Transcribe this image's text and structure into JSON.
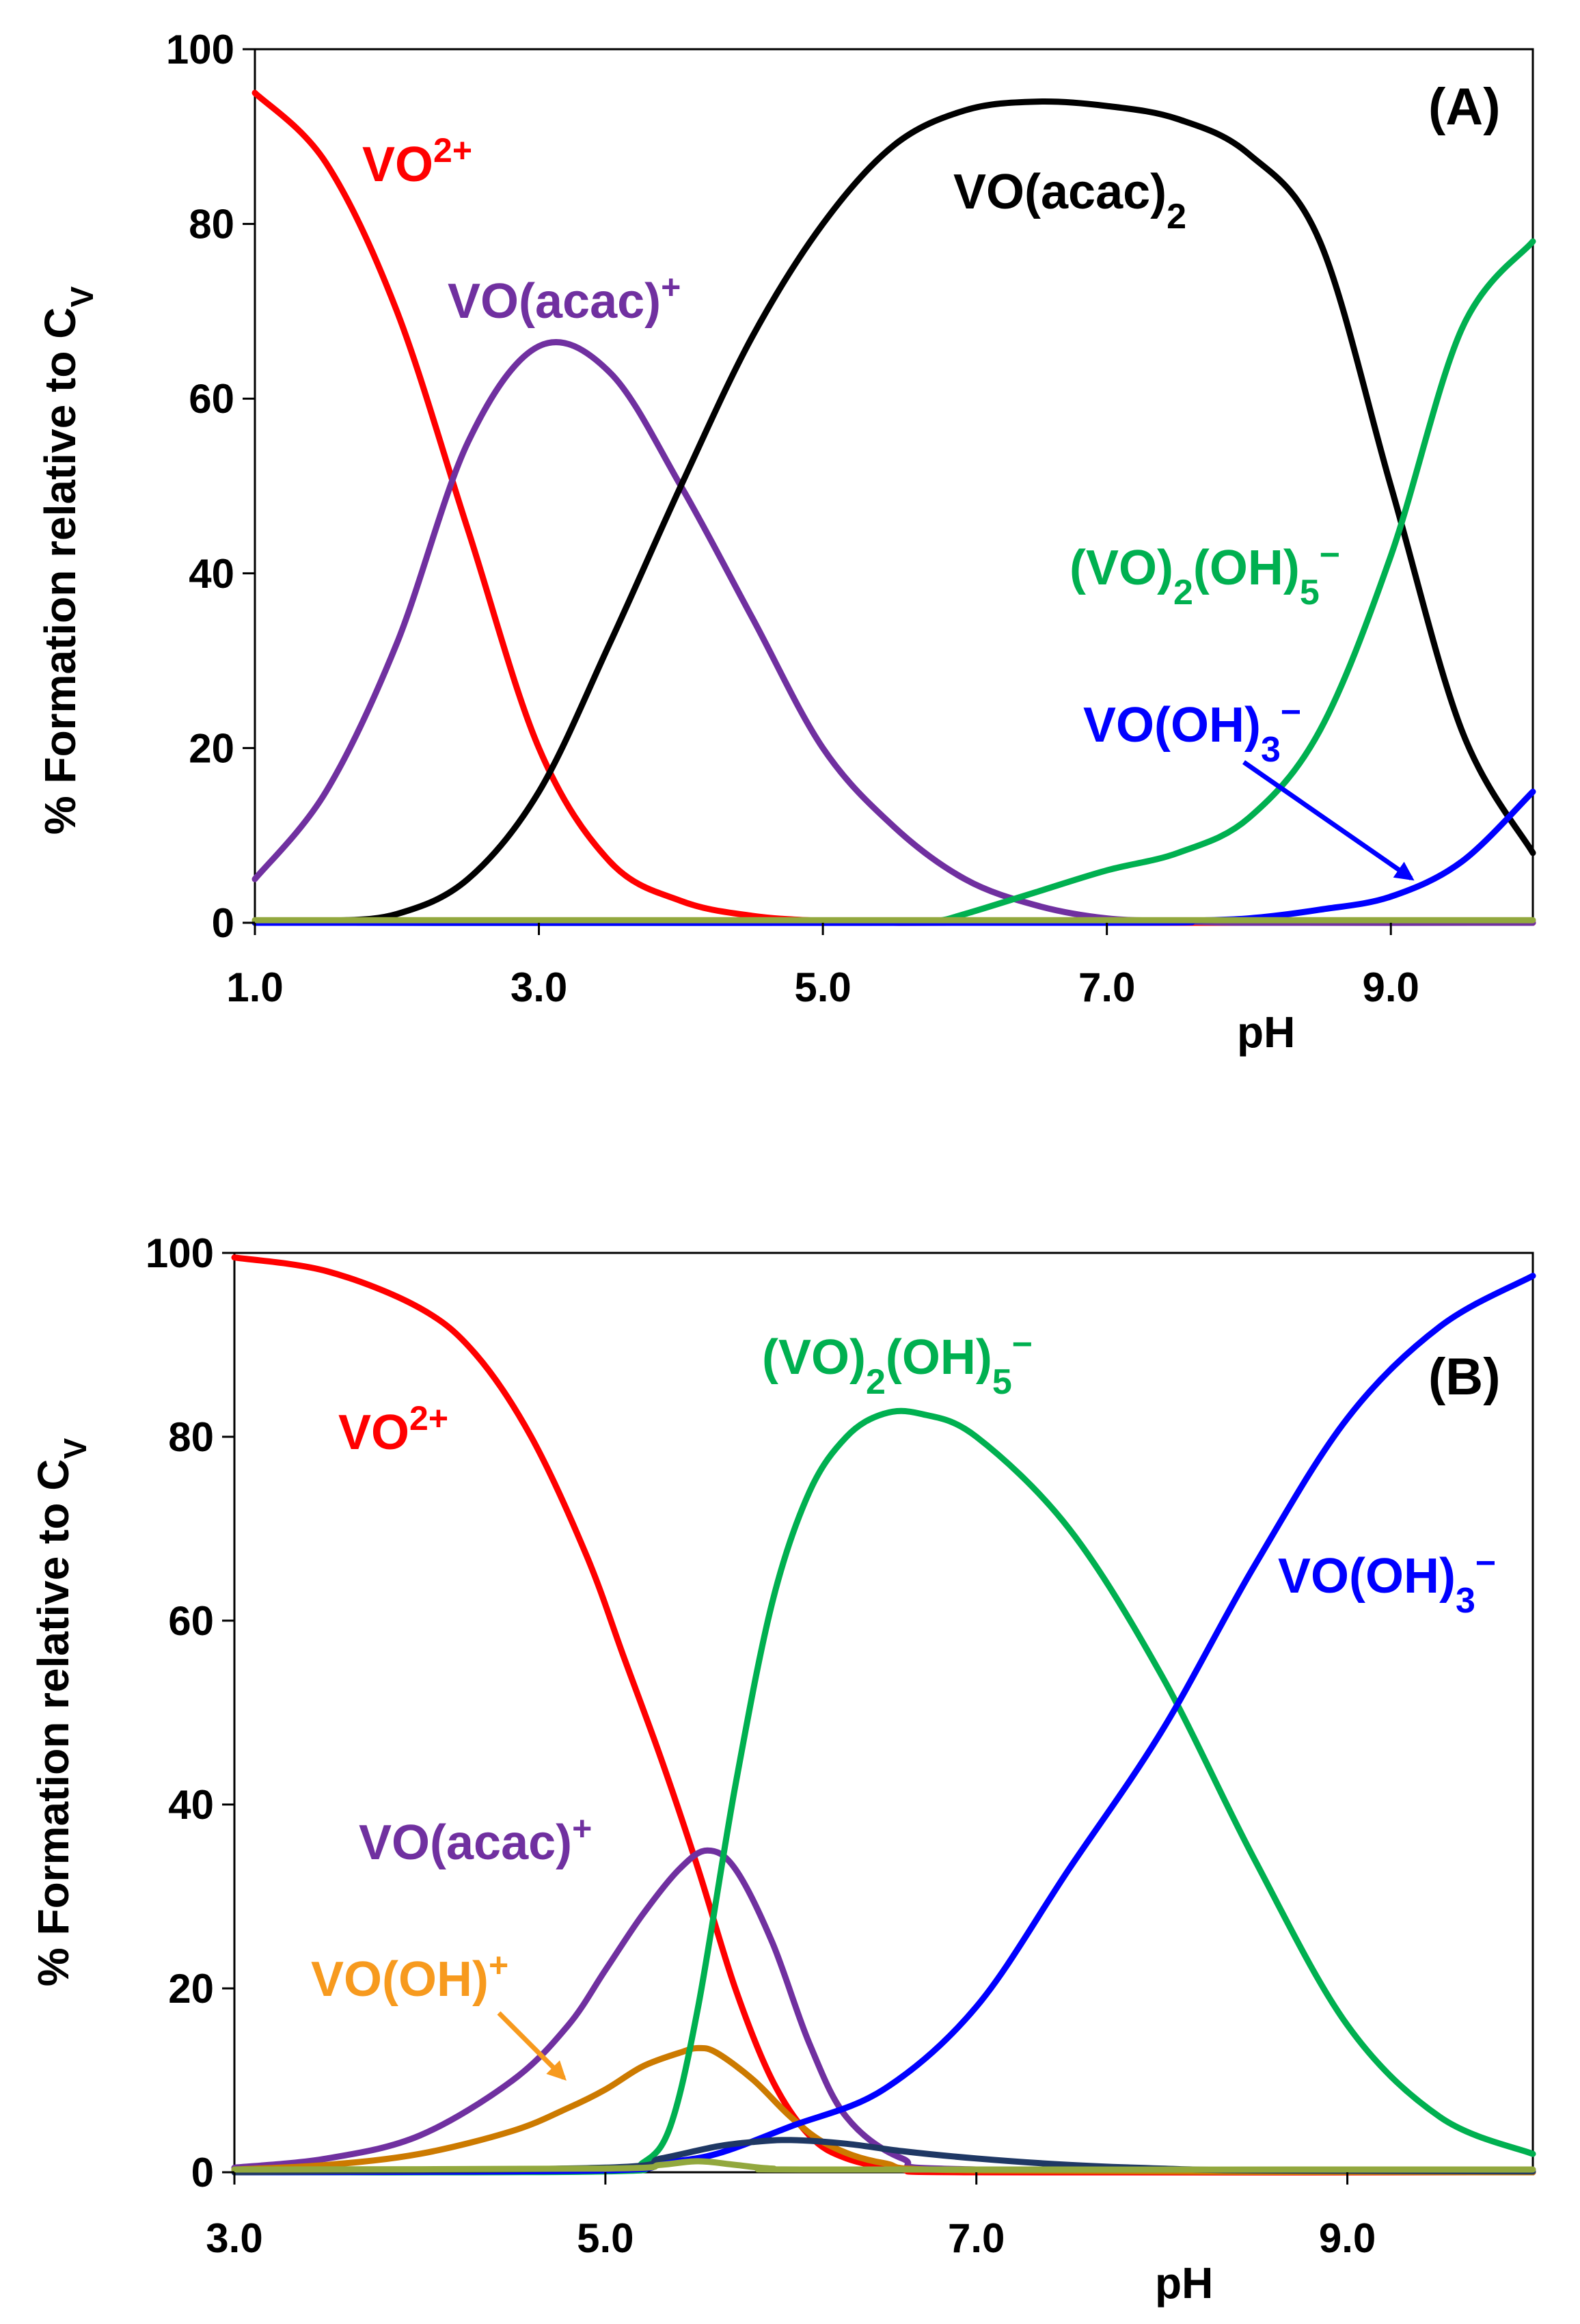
{
  "chart_data": [
    {
      "type": "line",
      "panel_label": "(A)",
      "xlabel": "pH",
      "ylabel_main": "% Formation relative to C",
      "ylabel_sub": "V",
      "xlim": [
        1.0,
        10.0
      ],
      "ylim": [
        0,
        100
      ],
      "x_ticks": [
        "1.0",
        "3.0",
        "5.0",
        "7.0",
        "9.0"
      ],
      "x_tick_values": [
        1.0,
        3.0,
        5.0,
        7.0,
        9.0
      ],
      "y_ticks": [
        "0",
        "20",
        "40",
        "60",
        "80",
        "100"
      ],
      "y_tick_values": [
        0,
        20,
        40,
        60,
        80,
        100
      ],
      "series": [
        {
          "name": "VO2+",
          "color": "#ff0000",
          "x": [
            1.0,
            1.5,
            2.0,
            2.5,
            3.0,
            3.5,
            4.0,
            4.5,
            5.0,
            5.5,
            6.0,
            10.0
          ],
          "y": [
            95,
            87,
            70,
            45,
            20,
            7,
            2.5,
            0.8,
            0.2,
            0,
            0,
            0
          ]
        },
        {
          "name": "VO(acac)+",
          "color": "#7030a0",
          "x": [
            1.0,
            1.5,
            2.0,
            2.5,
            3.0,
            3.5,
            4.0,
            4.5,
            5.0,
            5.5,
            6.0,
            6.5,
            7.0,
            7.5,
            8.0,
            10.0
          ],
          "y": [
            5,
            15,
            32,
            55,
            66,
            63,
            50,
            35,
            20,
            11,
            5,
            2,
            0.5,
            0.2,
            0,
            0
          ]
        },
        {
          "name": "VO(acac)2",
          "color": "#000000",
          "x": [
            1.0,
            1.5,
            2.0,
            2.5,
            3.0,
            3.5,
            4.0,
            4.5,
            5.0,
            5.5,
            6.0,
            6.5,
            7.0,
            7.5,
            8.0,
            8.5,
            9.0,
            9.5,
            10.0
          ],
          "y": [
            0,
            0.2,
            1,
            5,
            15,
            32,
            50,
            67,
            80,
            89,
            93,
            94,
            93.5,
            92,
            88,
            78,
            50,
            22,
            8
          ]
        },
        {
          "name": "(VO)2(OH)5−",
          "color": "#00b050",
          "x": [
            1.0,
            5.5,
            5.8,
            6.0,
            6.5,
            7.0,
            7.5,
            8.0,
            8.5,
            9.0,
            9.5,
            10.0
          ],
          "y": [
            0,
            0,
            0.2,
            1,
            3.5,
            6,
            8,
            12,
            22,
            42,
            68,
            78
          ]
        },
        {
          "name": "VO(OH)3−",
          "color": "#0000ff",
          "x": [
            1.0,
            7.0,
            7.5,
            8.0,
            8.5,
            9.0,
            9.5,
            10.0
          ],
          "y": [
            0,
            0,
            0.2,
            0.5,
            1.5,
            3,
            7,
            15
          ]
        },
        {
          "name": "baseline",
          "color": "#92a83e",
          "x": [
            1.0,
            10.0
          ],
          "y": [
            0.3,
            0.3
          ]
        }
      ],
      "annotations": [
        {
          "text": "VO",
          "sup": "2+",
          "color": "#ff0000"
        },
        {
          "text": "VO(acac)",
          "sup": "+",
          "color": "#7030a0"
        },
        {
          "text": "VO(acac)",
          "sub": "2",
          "color": "#000000"
        },
        {
          "text": "(VO)",
          "sub": "2",
          "text2": "(OH)",
          "sub2": "5",
          "tail": "−",
          "color": "#00b050"
        },
        {
          "text": "VO(OH)",
          "sub": "3",
          "tail": "−",
          "color": "#0000ff"
        }
      ]
    },
    {
      "type": "line",
      "panel_label": "(B)",
      "xlabel": "pH",
      "ylabel_main": "% Formation relative to C",
      "ylabel_sub": "V",
      "xlim": [
        3.0,
        10.0
      ],
      "ylim": [
        0,
        100
      ],
      "x_ticks": [
        "3.0",
        "5.0",
        "7.0",
        "9.0"
      ],
      "x_tick_values": [
        3.0,
        5.0,
        7.0,
        9.0
      ],
      "y_ticks": [
        "0",
        "20",
        "40",
        "60",
        "80",
        "100"
      ],
      "y_tick_values": [
        0,
        20,
        40,
        60,
        80,
        100
      ],
      "series": [
        {
          "name": "VO2+",
          "color": "#ff0000",
          "x": [
            3.0,
            3.5,
            4.0,
            4.3,
            4.6,
            4.9,
            5.1,
            5.3,
            5.5,
            5.7,
            5.9,
            6.1,
            6.3,
            6.6,
            7.0,
            10.0
          ],
          "y": [
            99.5,
            98,
            94,
            89,
            80,
            67,
            56,
            45,
            33,
            20,
            10,
            4,
            1.5,
            0.3,
            0,
            0
          ]
        },
        {
          "name": "VO(acac)+",
          "color": "#7030a0",
          "x": [
            3.0,
            3.5,
            4.0,
            4.5,
            4.8,
            5.0,
            5.2,
            5.4,
            5.55,
            5.7,
            5.9,
            6.1,
            6.3,
            6.6,
            7.0,
            10.0
          ],
          "y": [
            0.5,
            1.5,
            4,
            10,
            16,
            22,
            28,
            33,
            35,
            33,
            25,
            14,
            6,
            1.5,
            0.3,
            0
          ]
        },
        {
          "name": "VO(OH)+",
          "color": "#cc7a00",
          "x": [
            3.0,
            3.5,
            4.0,
            4.5,
            4.8,
            5.0,
            5.2,
            5.4,
            5.5,
            5.6,
            5.8,
            6.0,
            6.2,
            6.5,
            7.0,
            10.0
          ],
          "y": [
            0.3,
            0.8,
            2,
            4.5,
            7,
            9,
            11.5,
            13,
            13.5,
            13,
            10,
            6,
            3,
            1,
            0.2,
            0
          ]
        },
        {
          "name": "(VO)2(OH)5−",
          "color": "#00b050",
          "x": [
            3.0,
            5.0,
            5.2,
            5.35,
            5.5,
            5.7,
            5.9,
            6.1,
            6.3,
            6.5,
            6.7,
            7.0,
            7.5,
            8.0,
            8.5,
            9.0,
            9.5,
            10.0
          ],
          "y": [
            0,
            0.1,
            1,
            5,
            18,
            42,
            62,
            74,
            80,
            82.5,
            82.5,
            80,
            70,
            54,
            34,
            16,
            6,
            2
          ]
        },
        {
          "name": "VO(OH)3−",
          "color": "#0000ff",
          "x": [
            3.0,
            5.0,
            5.3,
            5.6,
            6.0,
            6.5,
            7.0,
            7.5,
            8.0,
            8.5,
            9.0,
            9.5,
            10.0
          ],
          "y": [
            0,
            0.2,
            1,
            2,
            5,
            9,
            18,
            33,
            48,
            66,
            82,
            92,
            97.5
          ]
        },
        {
          "name": "dark-blue",
          "color": "#1f3864",
          "x": [
            3.0,
            5.0,
            5.3,
            5.6,
            5.8,
            6.0,
            6.3,
            6.6,
            7.0,
            7.5,
            8.0,
            8.5,
            10.0
          ],
          "y": [
            0,
            0.5,
            1.5,
            2.8,
            3.3,
            3.5,
            3.1,
            2.3,
            1.5,
            0.8,
            0.4,
            0.2,
            0.1
          ]
        },
        {
          "name": "olive",
          "color": "#92a83e",
          "x": [
            3.0,
            5.0,
            5.3,
            5.5,
            5.7,
            5.9,
            6.2,
            10.0
          ],
          "y": [
            0.3,
            0.4,
            0.8,
            1.2,
            0.8,
            0.4,
            0.3,
            0.3
          ]
        }
      ],
      "annotations": [
        {
          "text": "VO",
          "sup": "2+",
          "color": "#ff0000"
        },
        {
          "text": "(VO)",
          "sub": "2",
          "text2": "(OH)",
          "sub2": "5",
          "tail": "−",
          "color": "#00b050"
        },
        {
          "text": "VO(OH)",
          "sub": "3",
          "tail": "−",
          "color": "#0000ff"
        },
        {
          "text": "VO(acac)",
          "sup": "+",
          "color": "#7030a0"
        },
        {
          "text": "VO(OH)",
          "sup": "+",
          "color": "#f79a1e"
        }
      ]
    }
  ]
}
